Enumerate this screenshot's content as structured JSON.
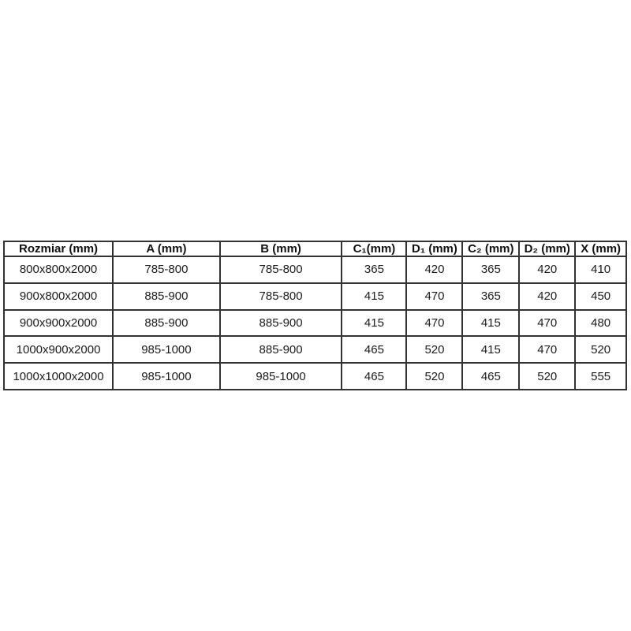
{
  "table": {
    "title": "shower-enclosure-dimensions",
    "headers": [
      "Rozmiar (mm)",
      "A (mm)",
      "B (mm)",
      "C₁(mm)",
      "D₁ (mm)",
      "C₂ (mm)",
      "D₂ (mm)",
      "X (mm)"
    ],
    "rows": [
      [
        "800x800x2000",
        "785-800",
        "785-800",
        "365",
        "420",
        "365",
        "420",
        "410"
      ],
      [
        "900x800x2000",
        "885-900",
        "785-800",
        "415",
        "470",
        "365",
        "420",
        "450"
      ],
      [
        "900x900x2000",
        "885-900",
        "885-900",
        "415",
        "470",
        "415",
        "470",
        "480"
      ],
      [
        "1000x900x2000",
        "985-1000",
        "885-900",
        "465",
        "520",
        "415",
        "470",
        "520"
      ],
      [
        "1000x1000x2000",
        "985-1000",
        "985-1000",
        "465",
        "520",
        "465",
        "520",
        "555"
      ]
    ],
    "colors": {
      "border": "#333333",
      "text": "#1a1a1a",
      "background": "#ffffff"
    }
  }
}
